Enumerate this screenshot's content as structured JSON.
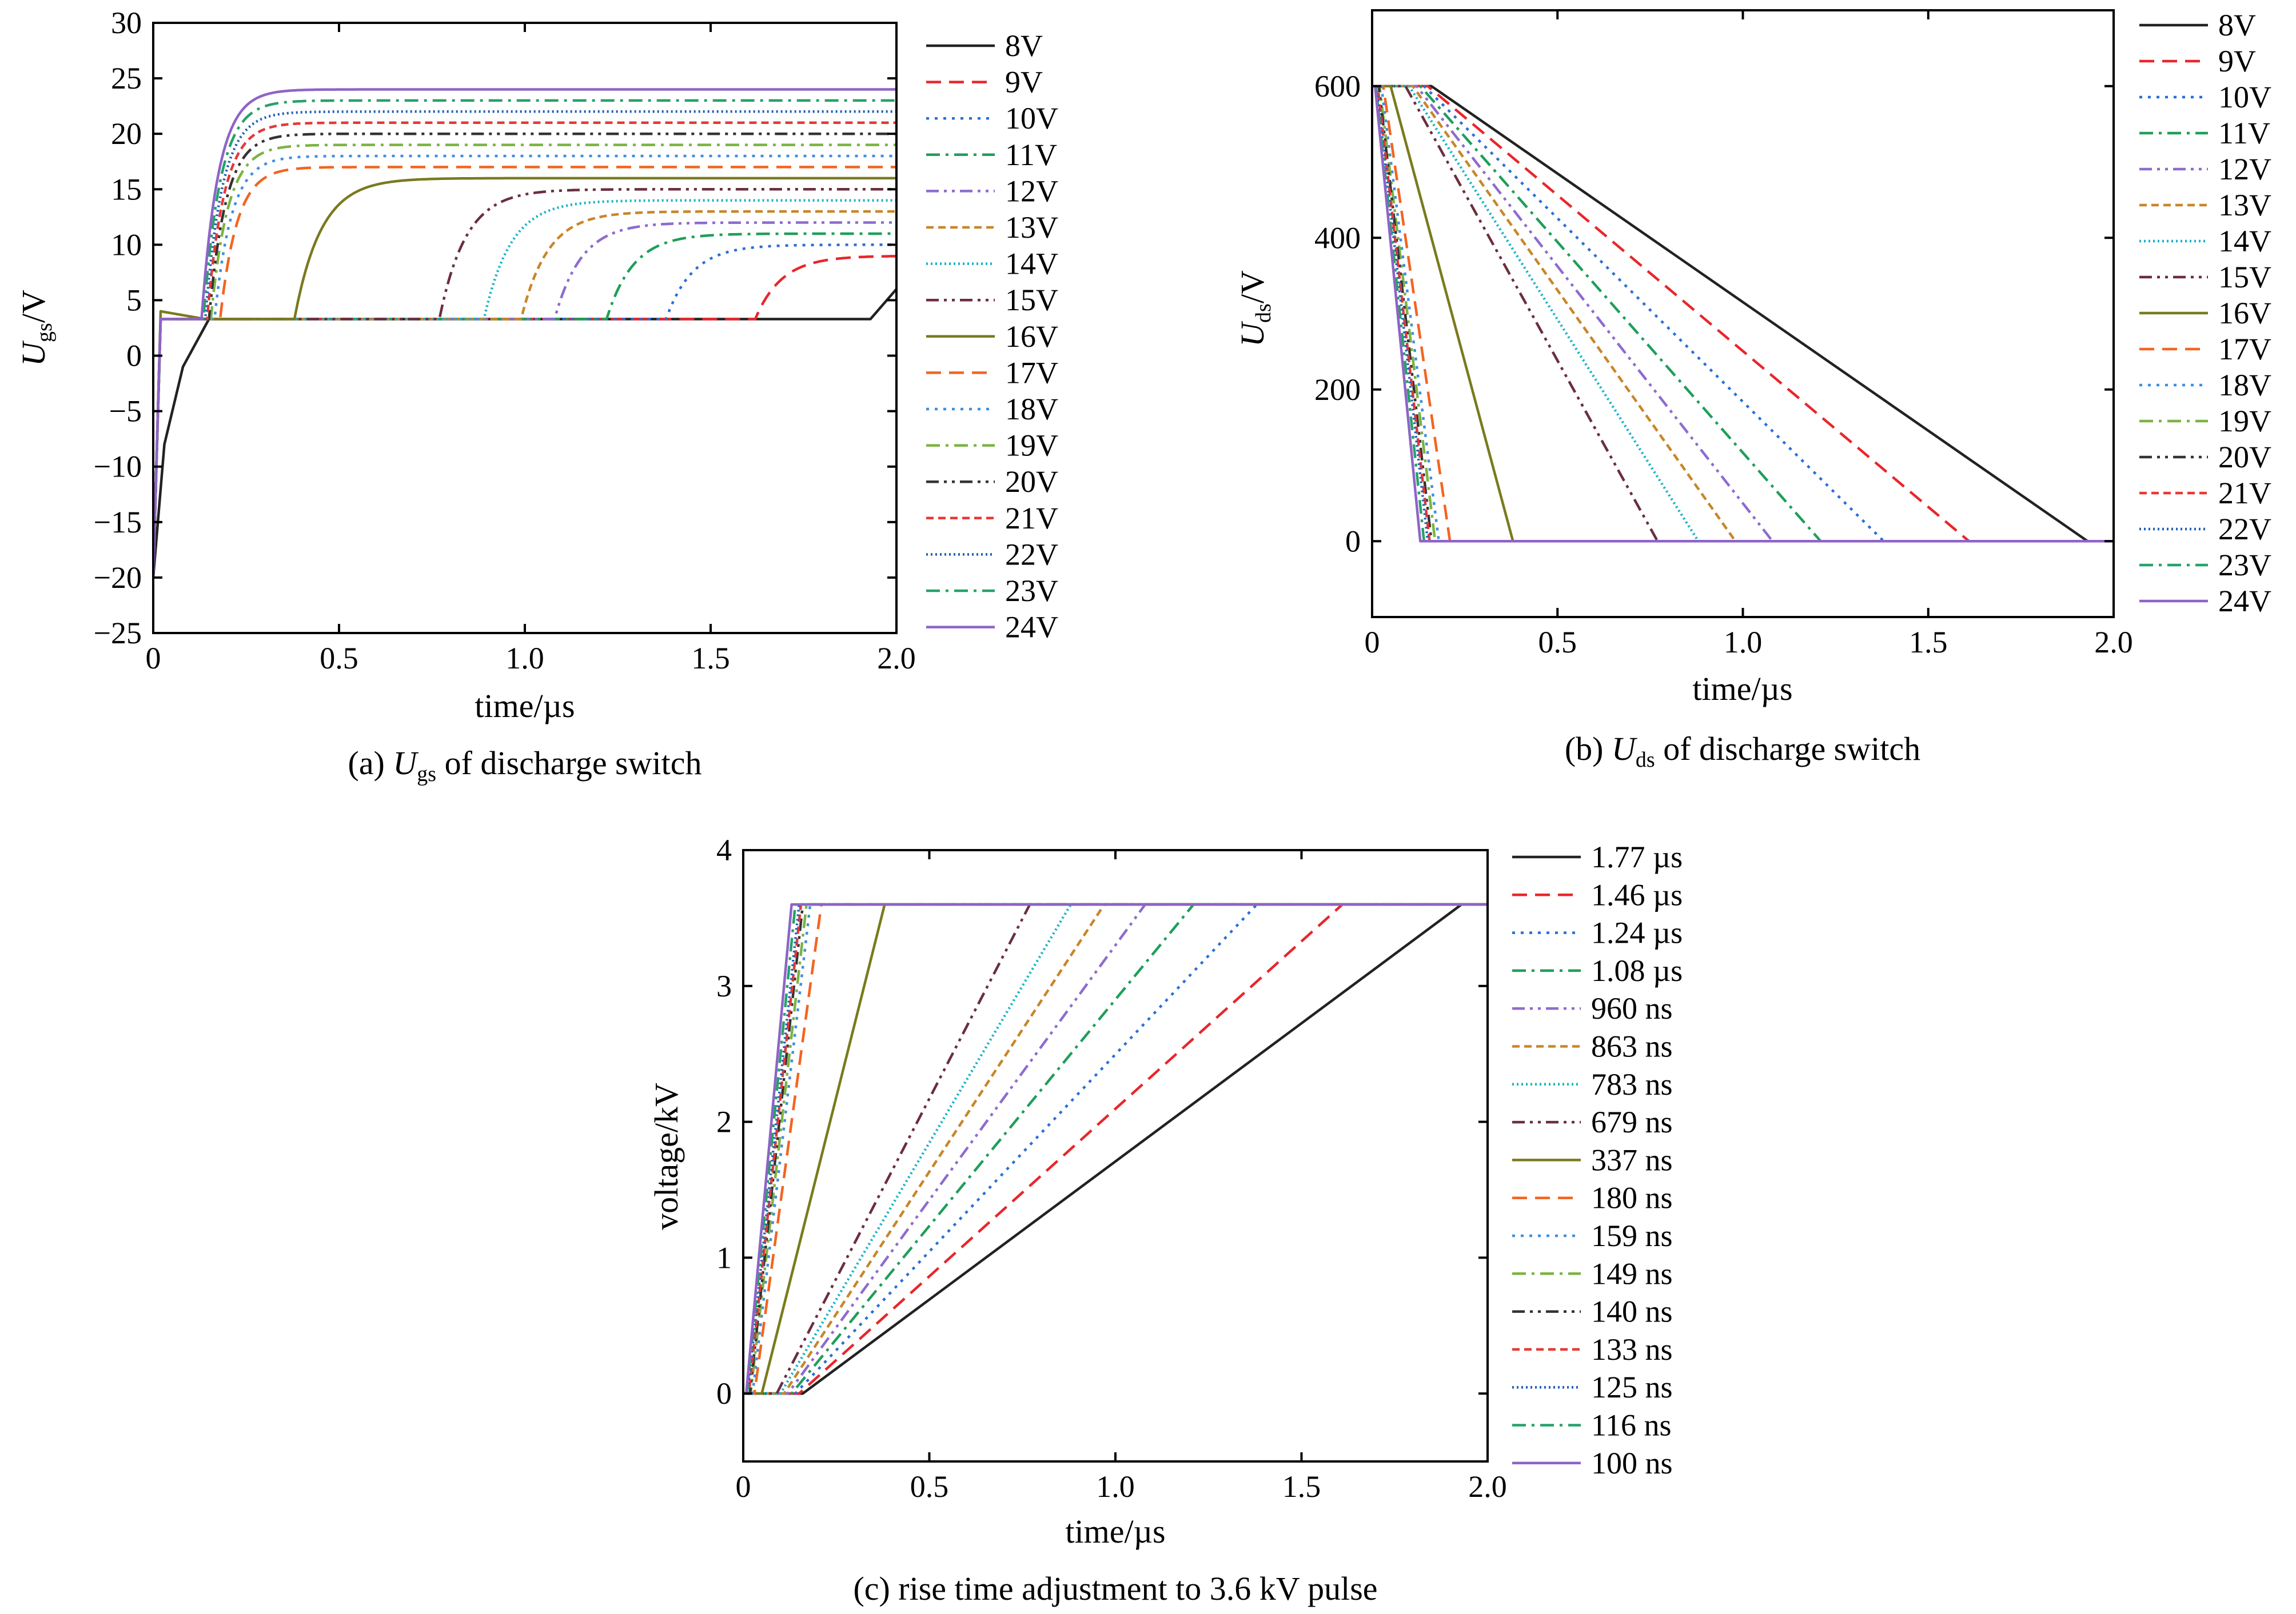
{
  "chart_data": [
    {
      "id": "a",
      "type": "line",
      "caption": {
        "prefix": "(a) ",
        "var": "U",
        "sub": "gs",
        "rest": " of discharge switch"
      },
      "ylabel": {
        "var": "U",
        "sub": "gs",
        "unit": "/V"
      },
      "xlabel": "time/µs",
      "xlim": [
        0,
        2.0
      ],
      "ylim": [
        -25,
        30
      ],
      "xticks": [
        0,
        0.5,
        1.0,
        1.5,
        2.0
      ],
      "xtick_labels": [
        "0",
        "0.5",
        "1.0",
        "1.5",
        "2.0"
      ],
      "yticks": [
        -25,
        -20,
        -15,
        -10,
        -5,
        0,
        5,
        10,
        15,
        20,
        25,
        30
      ],
      "ytick_labels": [
        "−25",
        "−20",
        "−15",
        "−10",
        "−5",
        "0",
        "5",
        "10",
        "15",
        "20",
        "25",
        "30"
      ],
      "legend_position": "right",
      "series": [
        {
          "name": "8V",
          "color": "#222222",
          "dash": "solid",
          "final": 6,
          "rise_start": 1.92,
          "x": [
            0,
            0.03,
            0.08,
            0.15,
            1.93,
            2.0
          ],
          "y": [
            -20,
            -8,
            -1,
            3.3,
            3.3,
            6
          ]
        },
        {
          "name": "9V",
          "color": "#e8262b",
          "dash": "dash",
          "final": 9,
          "rise_start": 1.62
        },
        {
          "name": "10V",
          "color": "#2a6fd6",
          "dash": "dot",
          "final": 10,
          "rise_start": 1.38
        },
        {
          "name": "11V",
          "color": "#1f9e5a",
          "dash": "dashdot",
          "final": 11,
          "rise_start": 1.22
        },
        {
          "name": "12V",
          "color": "#8e6bcf",
          "dash": "dashdotdot",
          "final": 12,
          "rise_start": 1.08
        },
        {
          "name": "13V",
          "color": "#c8862a",
          "dash": "shortdash",
          "final": 13,
          "rise_start": 0.99
        },
        {
          "name": "14V",
          "color": "#17b3c9",
          "dash": "densedot",
          "final": 14,
          "rise_start": 0.89
        },
        {
          "name": "15V",
          "color": "#6b2e3e",
          "dash": "dashdotdot",
          "final": 15,
          "rise_start": 0.77
        },
        {
          "name": "16V",
          "color": "#7a7a1f",
          "dash": "solid",
          "final": 16,
          "rise_start": 0.38
        },
        {
          "name": "17V",
          "color": "#f26522",
          "dash": "dash",
          "final": 17,
          "rise_start": 0.18
        },
        {
          "name": "18V",
          "color": "#3e8fe0",
          "dash": "dot",
          "final": 18,
          "rise_start": 0.165
        },
        {
          "name": "19V",
          "color": "#7cb342",
          "dash": "dashdot",
          "final": 19,
          "rise_start": 0.155
        },
        {
          "name": "20V",
          "color": "#333333",
          "dash": "dashdotdot",
          "final": 20,
          "rise_start": 0.15
        },
        {
          "name": "21V",
          "color": "#e53935",
          "dash": "shortdash",
          "final": 21,
          "rise_start": 0.145
        },
        {
          "name": "22V",
          "color": "#1e5fb8",
          "dash": "densedot",
          "final": 22,
          "rise_start": 0.14
        },
        {
          "name": "23V",
          "color": "#26a269",
          "dash": "dashdot",
          "final": 23,
          "rise_start": 0.135
        },
        {
          "name": "24V",
          "color": "#8f63c7",
          "dash": "solid",
          "final": 24,
          "rise_start": 0.13
        }
      ]
    },
    {
      "id": "b",
      "type": "line",
      "caption": {
        "prefix": "(b) ",
        "var": "U",
        "sub": "ds",
        "rest": " of discharge switch"
      },
      "ylabel": {
        "var": "U",
        "sub": "ds",
        "unit": "/V"
      },
      "xlabel": "time/µs",
      "xlim": [
        0,
        2.0
      ],
      "ylim": [
        -100,
        700
      ],
      "xticks": [
        0,
        0.5,
        1.0,
        1.5,
        2.0
      ],
      "xtick_labels": [
        "0",
        "0.5",
        "1.0",
        "1.5",
        "2.0"
      ],
      "yticks": [
        0,
        200,
        400,
        600
      ],
      "ytick_labels": [
        "0",
        "200",
        "400",
        "600"
      ],
      "legend_position": "right",
      "series": [
        {
          "name": "8V",
          "color": "#222222",
          "dash": "solid",
          "x": [
            0,
            0.16,
            1.93,
            2.0
          ],
          "y": [
            600,
            600,
            0,
            0
          ]
        },
        {
          "name": "9V",
          "color": "#e8262b",
          "dash": "dash",
          "x": [
            0,
            0.15,
            1.61,
            2.0
          ],
          "y": [
            600,
            600,
            0,
            0
          ]
        },
        {
          "name": "10V",
          "color": "#2a6fd6",
          "dash": "dot",
          "x": [
            0,
            0.14,
            1.38,
            2.0
          ],
          "y": [
            600,
            600,
            0,
            0
          ]
        },
        {
          "name": "11V",
          "color": "#1f9e5a",
          "dash": "dashdot",
          "x": [
            0,
            0.13,
            1.21,
            2.0
          ],
          "y": [
            600,
            600,
            0,
            0
          ]
        },
        {
          "name": "12V",
          "color": "#8e6bcf",
          "dash": "dashdotdot",
          "x": [
            0,
            0.12,
            1.08,
            2.0
          ],
          "y": [
            600,
            600,
            0,
            0
          ]
        },
        {
          "name": "13V",
          "color": "#c8862a",
          "dash": "shortdash",
          "x": [
            0,
            0.11,
            0.98,
            2.0
          ],
          "y": [
            600,
            600,
            0,
            0
          ]
        },
        {
          "name": "14V",
          "color": "#17b3c9",
          "dash": "densedot",
          "x": [
            0,
            0.1,
            0.88,
            2.0
          ],
          "y": [
            600,
            600,
            0,
            0
          ]
        },
        {
          "name": "15V",
          "color": "#6b2e3e",
          "dash": "dashdotdot",
          "x": [
            0,
            0.09,
            0.77,
            2.0
          ],
          "y": [
            600,
            600,
            0,
            0
          ]
        },
        {
          "name": "16V",
          "color": "#7a7a1f",
          "dash": "solid",
          "x": [
            0,
            0.05,
            0.38,
            2.0
          ],
          "y": [
            600,
            600,
            0,
            0
          ]
        },
        {
          "name": "17V",
          "color": "#f26522",
          "dash": "dash",
          "x": [
            0,
            0.03,
            0.21,
            2.0
          ],
          "y": [
            600,
            600,
            0,
            0
          ]
        },
        {
          "name": "18V",
          "color": "#3e8fe0",
          "dash": "dot",
          "x": [
            0,
            0.025,
            0.18,
            2.0
          ],
          "y": [
            600,
            600,
            0,
            0
          ]
        },
        {
          "name": "19V",
          "color": "#7cb342",
          "dash": "dashdot",
          "x": [
            0,
            0.02,
            0.17,
            2.0
          ],
          "y": [
            600,
            600,
            0,
            0
          ]
        },
        {
          "name": "20V",
          "color": "#333333",
          "dash": "dashdotdot",
          "x": [
            0,
            0.018,
            0.16,
            2.0
          ],
          "y": [
            600,
            600,
            0,
            0
          ]
        },
        {
          "name": "21V",
          "color": "#e53935",
          "dash": "shortdash",
          "x": [
            0,
            0.015,
            0.155,
            2.0
          ],
          "y": [
            600,
            600,
            0,
            0
          ]
        },
        {
          "name": "22V",
          "color": "#1e5fb8",
          "dash": "densedot",
          "x": [
            0,
            0.012,
            0.15,
            2.0
          ],
          "y": [
            600,
            600,
            0,
            0
          ]
        },
        {
          "name": "23V",
          "color": "#26a269",
          "dash": "dashdot",
          "x": [
            0,
            0.01,
            0.14,
            2.0
          ],
          "y": [
            600,
            600,
            0,
            0
          ]
        },
        {
          "name": "24V",
          "color": "#8f63c7",
          "dash": "solid",
          "x": [
            0,
            0.008,
            0.13,
            2.0
          ],
          "y": [
            600,
            600,
            0,
            0
          ]
        }
      ]
    },
    {
      "id": "c",
      "type": "line",
      "caption": {
        "prefix": "(c) rise time adjustment to 3.6 kV pulse",
        "var": "",
        "sub": "",
        "rest": ""
      },
      "ylabel": {
        "var": "",
        "sub": "",
        "unit": "voltage/kV"
      },
      "xlabel": "time/µs",
      "xlim": [
        0,
        2.0
      ],
      "ylim": [
        -0.5,
        4
      ],
      "xticks": [
        0,
        0.5,
        1.0,
        1.5,
        2.0
      ],
      "xtick_labels": [
        "0",
        "0.5",
        "1.0",
        "1.5",
        "2.0"
      ],
      "yticks": [
        0,
        1,
        2,
        3,
        4
      ],
      "ytick_labels": [
        "0",
        "1",
        "2",
        "3",
        "4"
      ],
      "legend_position": "right",
      "series": [
        {
          "name": "1.77 µs",
          "color": "#222222",
          "dash": "solid",
          "x": [
            0,
            0.16,
            1.93,
            2.0
          ],
          "y": [
            0,
            0,
            3.6,
            3.6
          ]
        },
        {
          "name": "1.46 µs",
          "color": "#e8262b",
          "dash": "dash",
          "x": [
            0,
            0.15,
            1.61,
            2.0
          ],
          "y": [
            0,
            0,
            3.6,
            3.6
          ]
        },
        {
          "name": "1.24 µs",
          "color": "#2a6fd6",
          "dash": "dot",
          "x": [
            0,
            0.14,
            1.38,
            2.0
          ],
          "y": [
            0,
            0,
            3.6,
            3.6
          ]
        },
        {
          "name": "1.08 µs",
          "color": "#1f9e5a",
          "dash": "dashdot",
          "x": [
            0,
            0.13,
            1.21,
            2.0
          ],
          "y": [
            0,
            0,
            3.6,
            3.6
          ]
        },
        {
          "name": "960 ns",
          "color": "#8e6bcf",
          "dash": "dashdotdot",
          "x": [
            0,
            0.12,
            1.08,
            2.0
          ],
          "y": [
            0,
            0,
            3.6,
            3.6
          ]
        },
        {
          "name": "863 ns",
          "color": "#c8862a",
          "dash": "shortdash",
          "x": [
            0,
            0.11,
            0.97,
            2.0
          ],
          "y": [
            0,
            0,
            3.6,
            3.6
          ]
        },
        {
          "name": "783 ns",
          "color": "#17b3c9",
          "dash": "densedot",
          "x": [
            0,
            0.1,
            0.88,
            2.0
          ],
          "y": [
            0,
            0,
            3.6,
            3.6
          ]
        },
        {
          "name": "679 ns",
          "color": "#6b2e3e",
          "dash": "dashdotdot",
          "x": [
            0,
            0.09,
            0.77,
            2.0
          ],
          "y": [
            0,
            0,
            3.6,
            3.6
          ]
        },
        {
          "name": "337 ns",
          "color": "#7a7a1f",
          "dash": "solid",
          "x": [
            0,
            0.05,
            0.38,
            2.0
          ],
          "y": [
            0,
            0,
            3.6,
            3.6
          ]
        },
        {
          "name": "180 ns",
          "color": "#f26522",
          "dash": "dash",
          "x": [
            0,
            0.03,
            0.21,
            2.0
          ],
          "y": [
            0,
            0,
            3.6,
            3.6
          ]
        },
        {
          "name": "159 ns",
          "color": "#3e8fe0",
          "dash": "dot",
          "x": [
            0,
            0.025,
            0.18,
            2.0
          ],
          "y": [
            0,
            0,
            3.6,
            3.6
          ]
        },
        {
          "name": "149 ns",
          "color": "#7cb342",
          "dash": "dashdot",
          "x": [
            0,
            0.02,
            0.17,
            2.0
          ],
          "y": [
            0,
            0,
            3.6,
            3.6
          ]
        },
        {
          "name": "140 ns",
          "color": "#333333",
          "dash": "dashdotdot",
          "x": [
            0,
            0.018,
            0.16,
            2.0
          ],
          "y": [
            0,
            0,
            3.6,
            3.6
          ]
        },
        {
          "name": "133 ns",
          "color": "#e53935",
          "dash": "shortdash",
          "x": [
            0,
            0.015,
            0.155,
            2.0
          ],
          "y": [
            0,
            0,
            3.6,
            3.6
          ]
        },
        {
          "name": "125 ns",
          "color": "#1e5fb8",
          "dash": "densedot",
          "x": [
            0,
            0.012,
            0.15,
            2.0
          ],
          "y": [
            0,
            0,
            3.6,
            3.6
          ]
        },
        {
          "name": "116 ns",
          "color": "#26a269",
          "dash": "dashdot",
          "x": [
            0,
            0.01,
            0.14,
            2.0
          ],
          "y": [
            0,
            0,
            3.6,
            3.6
          ]
        },
        {
          "name": "100 ns",
          "color": "#8f63c7",
          "dash": "solid",
          "x": [
            0,
            0.008,
            0.13,
            2.0
          ],
          "y": [
            0,
            0,
            3.6,
            3.6
          ]
        }
      ]
    }
  ]
}
